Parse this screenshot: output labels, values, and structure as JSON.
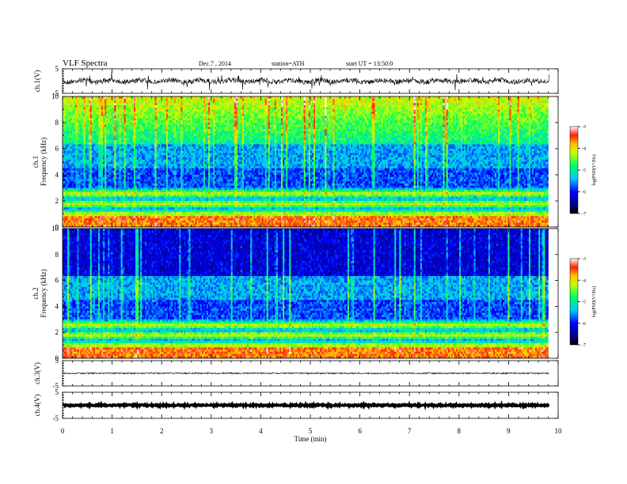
{
  "header": {
    "title": "VLF  Spectra",
    "date": "Dec.7  , 2014",
    "station": "station=ATH",
    "start": "start  UT  =    13:50:0"
  },
  "chart_data": [
    {
      "type": "line",
      "panel": "ch1-waveform",
      "ylabel": "ch.1(V)",
      "ylim": [
        -5,
        5
      ],
      "yticks": [
        "5",
        "-5"
      ],
      "xlim": [
        0,
        10
      ]
    },
    {
      "type": "heatmap",
      "panel": "ch1-spectrogram",
      "ylabel": "Frequency  (kHz)",
      "channel_label": "ch.1",
      "ylim": [
        0,
        10
      ],
      "yticks": [
        "0",
        "2",
        "4",
        "6",
        "8",
        "10"
      ],
      "xlim": [
        0,
        9.8
      ],
      "colorbar": {
        "label": "log(PSD(V²/Hz)",
        "ticks": [
          "-3",
          "-4",
          "-5",
          "-6",
          "-7"
        ],
        "range": [
          -7,
          -3
        ]
      }
    },
    {
      "type": "heatmap",
      "panel": "ch2-spectrogram",
      "ylabel": "Frequency  (kHz)",
      "channel_label": "ch.2",
      "ylim": [
        0,
        10
      ],
      "yticks": [
        "0",
        "2",
        "4",
        "6",
        "8",
        "10"
      ],
      "xlim": [
        0,
        9.8
      ],
      "colorbar": {
        "label": "log(PSD(V²/Hz)",
        "ticks": [
          "-3",
          "-4",
          "-5",
          "-6",
          "-7"
        ],
        "range": [
          -7,
          -3
        ]
      }
    },
    {
      "type": "line",
      "panel": "ch3-waveform",
      "ylabel": "ch.3(V)",
      "ylim": [
        -5,
        5
      ],
      "yticks": [
        "5",
        "-5"
      ],
      "xlim": [
        0,
        10
      ]
    },
    {
      "type": "line",
      "panel": "ch4-waveform",
      "ylabel": "ch.4(V)",
      "ylim": [
        -5,
        5
      ],
      "yticks": [
        "5",
        "-5"
      ],
      "xlim": [
        0,
        10
      ]
    }
  ],
  "xaxis": {
    "label": "Time  (min)",
    "ticks": [
      "0",
      "1",
      "2",
      "3",
      "4",
      "5",
      "6",
      "7",
      "8",
      "9",
      "10"
    ],
    "range": [
      0,
      10
    ]
  }
}
